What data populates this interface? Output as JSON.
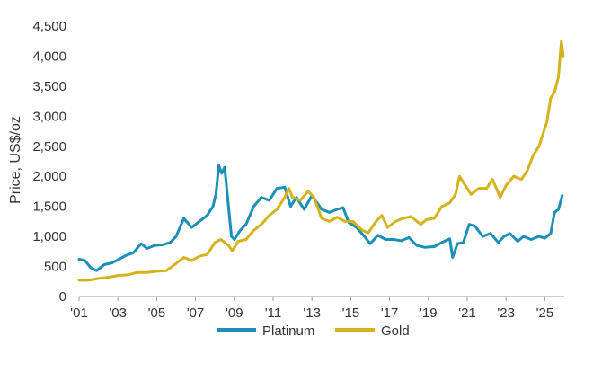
{
  "chart_data": {
    "type": "line",
    "title": "",
    "xlabel": "",
    "ylabel": "Price, US$/oz",
    "xlim": [
      2001,
      2026
    ],
    "ylim": [
      0,
      4500
    ],
    "grid": false,
    "legend_position": "bottom-center",
    "x_ticks": [
      2001,
      2003,
      2005,
      2007,
      2009,
      2011,
      2013,
      2015,
      2017,
      2019,
      2021,
      2023,
      2025
    ],
    "x_tick_labels": [
      "'01",
      "'03",
      "'05",
      "'07",
      "'09",
      "'11",
      "'13",
      "'15",
      "'17",
      "'19",
      "'21",
      "'23",
      "'25"
    ],
    "y_ticks": [
      0,
      500,
      1000,
      1500,
      2000,
      2500,
      3000,
      3500,
      4000,
      4500
    ],
    "y_tick_labels": [
      "0",
      "500",
      "1,000",
      "1,500",
      "2,000",
      "2,500",
      "3,000",
      "3,500",
      "4,000",
      "4,500"
    ],
    "series": [
      {
        "name": "Platinum",
        "color": "#1a8fb8",
        "points": [
          [
            2001.0,
            620
          ],
          [
            2001.3,
            600
          ],
          [
            2001.6,
            480
          ],
          [
            2001.9,
            430
          ],
          [
            2002.3,
            530
          ],
          [
            2002.7,
            560
          ],
          [
            2003.0,
            610
          ],
          [
            2003.4,
            680
          ],
          [
            2003.8,
            730
          ],
          [
            2004.2,
            880
          ],
          [
            2004.5,
            800
          ],
          [
            2004.9,
            850
          ],
          [
            2005.3,
            860
          ],
          [
            2005.7,
            900
          ],
          [
            2006.0,
            1000
          ],
          [
            2006.4,
            1300
          ],
          [
            2006.8,
            1150
          ],
          [
            2007.2,
            1250
          ],
          [
            2007.6,
            1350
          ],
          [
            2007.9,
            1500
          ],
          [
            2008.05,
            1700
          ],
          [
            2008.2,
            2180
          ],
          [
            2008.35,
            2050
          ],
          [
            2008.5,
            2150
          ],
          [
            2008.7,
            1500
          ],
          [
            2008.85,
            1000
          ],
          [
            2009.0,
            950
          ],
          [
            2009.3,
            1100
          ],
          [
            2009.6,
            1200
          ],
          [
            2010.0,
            1500
          ],
          [
            2010.4,
            1650
          ],
          [
            2010.8,
            1600
          ],
          [
            2011.2,
            1800
          ],
          [
            2011.6,
            1820
          ],
          [
            2011.9,
            1500
          ],
          [
            2012.2,
            1650
          ],
          [
            2012.6,
            1450
          ],
          [
            2013.0,
            1680
          ],
          [
            2013.5,
            1450
          ],
          [
            2013.9,
            1400
          ],
          [
            2014.3,
            1450
          ],
          [
            2014.6,
            1480
          ],
          [
            2014.9,
            1230
          ],
          [
            2015.3,
            1150
          ],
          [
            2015.7,
            1000
          ],
          [
            2016.0,
            880
          ],
          [
            2016.4,
            1020
          ],
          [
            2016.8,
            950
          ],
          [
            2017.2,
            950
          ],
          [
            2017.6,
            930
          ],
          [
            2018.0,
            980
          ],
          [
            2018.4,
            850
          ],
          [
            2018.8,
            820
          ],
          [
            2019.3,
            830
          ],
          [
            2019.7,
            900
          ],
          [
            2020.1,
            960
          ],
          [
            2020.25,
            650
          ],
          [
            2020.5,
            880
          ],
          [
            2020.8,
            900
          ],
          [
            2021.1,
            1200
          ],
          [
            2021.4,
            1170
          ],
          [
            2021.8,
            1000
          ],
          [
            2022.2,
            1050
          ],
          [
            2022.6,
            900
          ],
          [
            2022.9,
            1000
          ],
          [
            2023.2,
            1050
          ],
          [
            2023.6,
            920
          ],
          [
            2023.9,
            1000
          ],
          [
            2024.3,
            950
          ],
          [
            2024.7,
            1000
          ],
          [
            2025.0,
            970
          ],
          [
            2025.3,
            1050
          ],
          [
            2025.5,
            1400
          ],
          [
            2025.7,
            1450
          ],
          [
            2025.9,
            1680
          ]
        ]
      },
      {
        "name": "Gold",
        "color": "#d4b21a",
        "points": [
          [
            2001.0,
            270
          ],
          [
            2001.5,
            270
          ],
          [
            2002.0,
            300
          ],
          [
            2002.5,
            320
          ],
          [
            2003.0,
            350
          ],
          [
            2003.5,
            360
          ],
          [
            2004.0,
            400
          ],
          [
            2004.5,
            400
          ],
          [
            2005.0,
            420
          ],
          [
            2005.5,
            430
          ],
          [
            2006.0,
            550
          ],
          [
            2006.4,
            650
          ],
          [
            2006.8,
            600
          ],
          [
            2007.2,
            670
          ],
          [
            2007.6,
            700
          ],
          [
            2008.0,
            900
          ],
          [
            2008.3,
            950
          ],
          [
            2008.7,
            850
          ],
          [
            2008.9,
            760
          ],
          [
            2009.2,
            920
          ],
          [
            2009.6,
            950
          ],
          [
            2010.0,
            1100
          ],
          [
            2010.4,
            1200
          ],
          [
            2010.8,
            1350
          ],
          [
            2011.2,
            1450
          ],
          [
            2011.6,
            1650
          ],
          [
            2011.8,
            1800
          ],
          [
            2012.0,
            1650
          ],
          [
            2012.4,
            1600
          ],
          [
            2012.8,
            1750
          ],
          [
            2013.1,
            1650
          ],
          [
            2013.5,
            1300
          ],
          [
            2013.9,
            1250
          ],
          [
            2014.3,
            1320
          ],
          [
            2014.7,
            1250
          ],
          [
            2015.1,
            1250
          ],
          [
            2015.6,
            1100
          ],
          [
            2015.9,
            1060
          ],
          [
            2016.3,
            1250
          ],
          [
            2016.6,
            1350
          ],
          [
            2016.9,
            1150
          ],
          [
            2017.3,
            1250
          ],
          [
            2017.7,
            1300
          ],
          [
            2018.1,
            1330
          ],
          [
            2018.6,
            1200
          ],
          [
            2018.9,
            1280
          ],
          [
            2019.3,
            1300
          ],
          [
            2019.7,
            1500
          ],
          [
            2020.1,
            1560
          ],
          [
            2020.4,
            1700
          ],
          [
            2020.6,
            2000
          ],
          [
            2020.9,
            1850
          ],
          [
            2021.2,
            1700
          ],
          [
            2021.6,
            1800
          ],
          [
            2022.0,
            1800
          ],
          [
            2022.3,
            1950
          ],
          [
            2022.7,
            1650
          ],
          [
            2023.0,
            1850
          ],
          [
            2023.4,
            2000
          ],
          [
            2023.8,
            1950
          ],
          [
            2024.1,
            2100
          ],
          [
            2024.4,
            2350
          ],
          [
            2024.7,
            2500
          ],
          [
            2024.9,
            2700
          ],
          [
            2025.1,
            2900
          ],
          [
            2025.3,
            3300
          ],
          [
            2025.5,
            3400
          ],
          [
            2025.7,
            3650
          ],
          [
            2025.85,
            4250
          ],
          [
            2025.95,
            4000
          ]
        ]
      }
    ]
  }
}
